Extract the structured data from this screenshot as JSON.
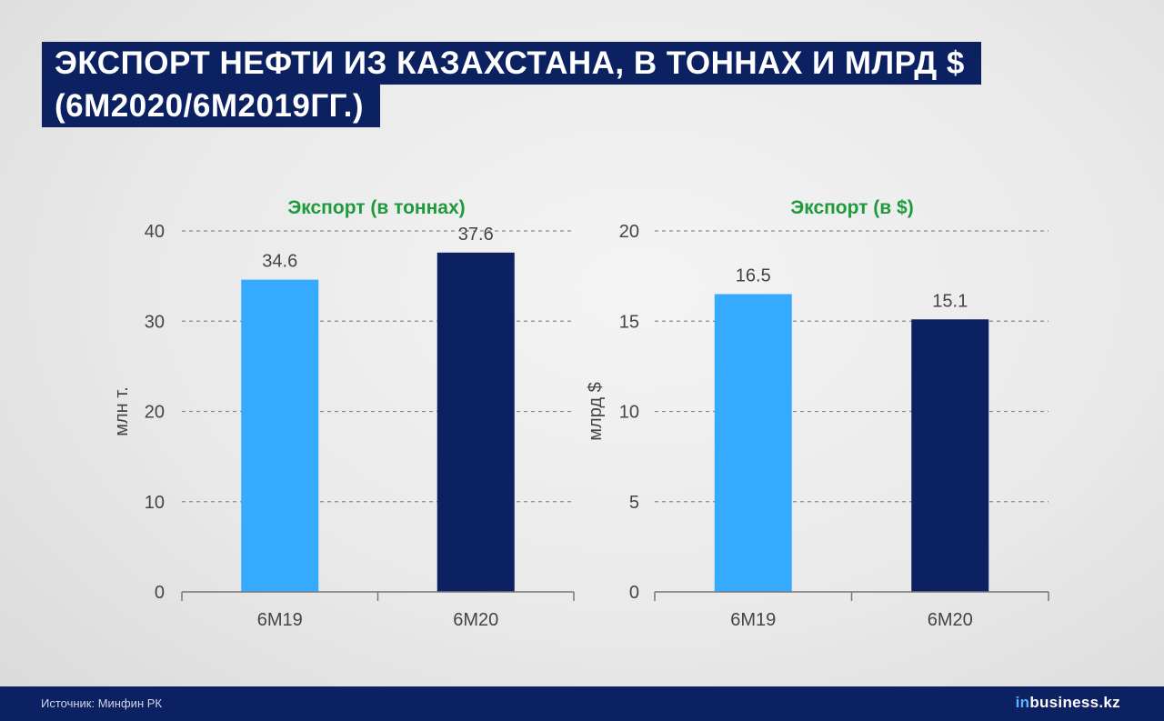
{
  "title": {
    "line1": "ЭКСПОРТ НЕФТИ ИЗ КАЗАХСТАНА, В ТОННАХ И МЛРД $",
    "line2": "(6М2020/6М2019ГГ.)"
  },
  "chart_data": [
    {
      "type": "bar",
      "title": "Экспорт (в тоннах)",
      "ylabel": "млн т.",
      "xlabel": "",
      "categories": [
        "6М19",
        "6М20"
      ],
      "values": [
        34.6,
        37.6
      ],
      "value_labels": [
        "34.6",
        "37.6"
      ],
      "bar_colors": [
        "#35aaff",
        "#0c2161"
      ],
      "ylim": [
        0,
        40
      ],
      "yticks": [
        "0",
        "10",
        "20",
        "30",
        "40"
      ],
      "grid": true
    },
    {
      "type": "bar",
      "title": "Экспорт (в $)",
      "ylabel": "млрд $",
      "xlabel": "",
      "categories": [
        "6М19",
        "6М20"
      ],
      "values": [
        16.5,
        15.1
      ],
      "value_labels": [
        "16.5",
        "15.1"
      ],
      "bar_colors": [
        "#35aaff",
        "#0c2161"
      ],
      "ylim": [
        0,
        20
      ],
      "yticks": [
        "0",
        "5",
        "10",
        "15",
        "20"
      ],
      "grid": true
    }
  ],
  "colors": {
    "title_bg": "#0c2161",
    "chart_title": "#1e9a3c",
    "footer_bg": "#0c2161"
  },
  "footer": {
    "source": "Источник: Минфин РК",
    "brand_prefix": "in",
    "brand_rest": "business.kz"
  }
}
